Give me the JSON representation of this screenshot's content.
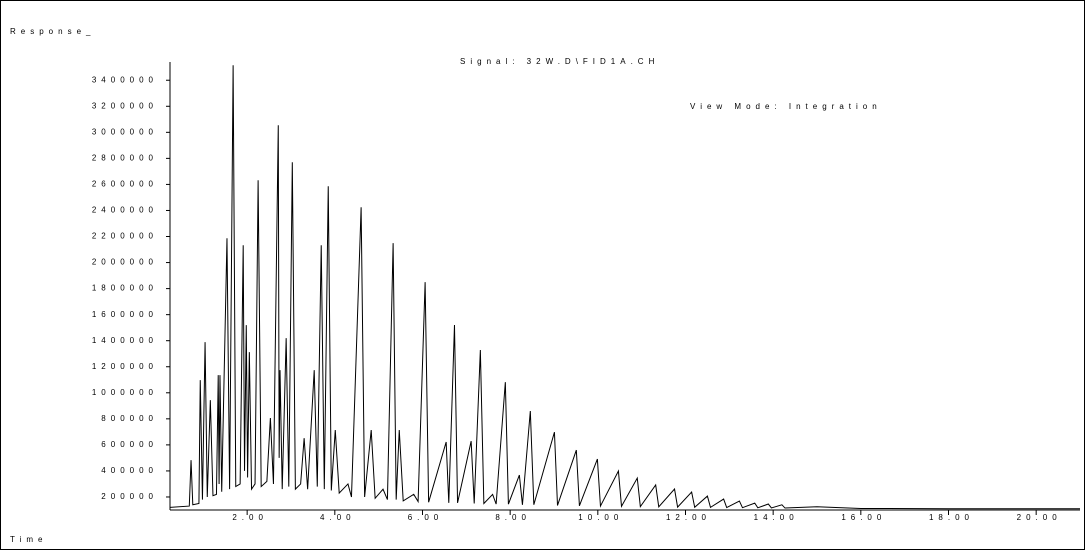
{
  "chart_data": {
    "type": "line",
    "title": "Signal: 32W.D\\FID1A.CH",
    "subtitle": "View Mode: Integration",
    "y_label": "Response_",
    "x_label": "Time",
    "color": "#000000",
    "grid": false,
    "xlim": [
      0.24,
      21.0
    ],
    "ylim": [
      100000,
      3540000
    ],
    "xticks": [
      {
        "value": 2,
        "label": "2.00"
      },
      {
        "value": 4,
        "label": "4.00"
      },
      {
        "value": 6,
        "label": "6.00"
      },
      {
        "value": 8,
        "label": "8.00"
      },
      {
        "value": 10,
        "label": "10.00"
      },
      {
        "value": 12,
        "label": "12.00"
      },
      {
        "value": 14,
        "label": "14.00"
      },
      {
        "value": 16,
        "label": "16.00"
      },
      {
        "value": 18,
        "label": "18.00"
      },
      {
        "value": 20,
        "label": "20.00"
      }
    ],
    "yticks": [
      200000,
      400000,
      600000,
      800000,
      1000000,
      1200000,
      1400000,
      1600000,
      1800000,
      2000000,
      2200000,
      2400000,
      2600000,
      2800000,
      3000000,
      3200000,
      3400000
    ],
    "x": [
      0.24,
      0.68,
      0.72,
      0.76,
      0.9,
      0.93,
      0.98,
      1.04,
      1.09,
      1.16,
      1.22,
      1.3,
      1.34,
      1.36,
      1.38,
      1.42,
      1.54,
      1.6,
      1.68,
      1.74,
      1.84,
      1.91,
      1.94,
      1.98,
      2.01,
      2.05,
      2.1,
      2.18,
      2.25,
      2.32,
      2.45,
      2.53,
      2.6,
      2.71,
      2.73,
      2.75,
      2.8,
      2.89,
      2.95,
      3.03,
      3.1,
      3.22,
      3.3,
      3.38,
      3.53,
      3.6,
      3.69,
      3.76,
      3.85,
      3.92,
      4.01,
      4.1,
      4.3,
      4.38,
      4.6,
      4.68,
      4.83,
      4.92,
      5.1,
      5.2,
      5.33,
      5.4,
      5.47,
      5.56,
      5.8,
      5.9,
      6.06,
      6.14,
      6.54,
      6.6,
      6.73,
      6.8,
      7.11,
      7.18,
      7.32,
      7.4,
      7.6,
      7.68,
      7.89,
      7.96,
      8.21,
      8.28,
      8.46,
      8.54,
      9.01,
      9.08,
      9.51,
      9.58,
      9.99,
      10.06,
      10.47,
      10.54,
      10.9,
      10.97,
      11.32,
      11.39,
      11.75,
      11.82,
      12.14,
      12.21,
      12.5,
      12.57,
      12.87,
      12.94,
      13.23,
      13.3,
      13.58,
      13.65,
      13.89,
      13.96,
      14.2,
      14.27,
      15.0,
      16.0,
      18.0,
      21.0
    ],
    "values": [
      120000,
      130000,
      483000,
      140000,
      150000,
      1097000,
      180000,
      1389000,
      200000,
      944000,
      210000,
      220000,
      1136000,
      300000,
      1136000,
      240000,
      2187000,
      260000,
      3515000,
      280000,
      300000,
      2133000,
      400000,
      1520000,
      350000,
      1312000,
      260000,
      300000,
      2632000,
      280000,
      320000,
      806000,
      300000,
      3054000,
      500000,
      1174000,
      260000,
      1420000,
      280000,
      2770000,
      260000,
      300000,
      652000,
      260000,
      1174000,
      280000,
      2133000,
      260000,
      2586000,
      250000,
      714000,
      230000,
      300000,
      200000,
      2425000,
      200000,
      714000,
      190000,
      260000,
      180000,
      2149000,
      180000,
      714000,
      170000,
      220000,
      165000,
      1850000,
      160000,
      622000,
      155000,
      1520000,
      155000,
      629000,
      150000,
      1328000,
      150000,
      220000,
      145000,
      1082000,
      145000,
      368000,
      140000,
      860000,
      140000,
      698000,
      135000,
      560000,
      132000,
      491000,
      130000,
      399000,
      128000,
      345000,
      126000,
      292000,
      124000,
      261000,
      122000,
      238000,
      121000,
      207000,
      120000,
      184000,
      119000,
      169000,
      118000,
      153000,
      117000,
      146000,
      116000,
      140000,
      115000,
      125000,
      112000,
      110000,
      110000
    ]
  }
}
